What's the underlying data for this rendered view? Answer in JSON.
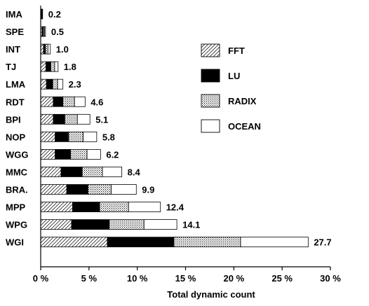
{
  "chart_data": {
    "type": "bar",
    "orientation": "horizontal",
    "stacked": true,
    "categories": [
      "IMA",
      "SPE",
      "INT",
      "TJ",
      "LMA",
      "RDT",
      "BPI",
      "NOP",
      "WGG",
      "MMC",
      "BRA.",
      "MPP",
      "WPG",
      "WGI"
    ],
    "series": [
      {
        "name": "FFT",
        "pattern": "diagonal-hatch",
        "color": "#ffffff",
        "values": [
          0.0,
          0.15,
          0.3,
          0.55,
          0.6,
          1.3,
          1.3,
          1.5,
          1.5,
          2.1,
          2.7,
          3.3,
          3.2,
          6.9
        ]
      },
      {
        "name": "LU",
        "pattern": "solid",
        "color": "#000000",
        "values": [
          0.2,
          0.15,
          0.2,
          0.5,
          0.65,
          1.0,
          1.2,
          1.4,
          1.6,
          2.2,
          2.2,
          2.8,
          3.9,
          6.9
        ]
      },
      {
        "name": "RADIX",
        "pattern": "dots",
        "color": "#ffffff",
        "values": [
          0.0,
          0.1,
          0.25,
          0.4,
          0.5,
          1.2,
          1.3,
          1.5,
          1.7,
          2.1,
          2.4,
          3.0,
          3.6,
          6.9
        ]
      },
      {
        "name": "OCEAN",
        "pattern": "none",
        "color": "#ffffff",
        "values": [
          0.0,
          0.1,
          0.25,
          0.35,
          0.55,
          1.1,
          1.3,
          1.4,
          1.4,
          2.0,
          2.6,
          3.3,
          3.4,
          7.0
        ]
      }
    ],
    "totals": [
      0.2,
      0.5,
      1.0,
      1.8,
      2.3,
      4.6,
      5.1,
      5.8,
      6.2,
      8.4,
      9.9,
      12.4,
      14.1,
      27.7
    ],
    "total_labels": [
      "0.2",
      "0.5",
      "1.0",
      "1.8",
      "2.3",
      "4.6",
      "5.1",
      "5.8",
      "6.2",
      "8.4",
      "9.9",
      "12.4",
      "14.1",
      "27.7"
    ],
    "xlabel": "Total dynamic count",
    "ylabel": "",
    "xlim": [
      0,
      30
    ],
    "xticks": [
      0,
      5,
      10,
      15,
      20,
      25,
      30
    ],
    "xtick_labels": [
      "0 %",
      "5 %",
      "10 %",
      "15 %",
      "20 %",
      "25 %",
      "30 %"
    ],
    "legend": {
      "placement": "right",
      "entries": [
        "FFT",
        "LU",
        "RADIX",
        "OCEAN"
      ]
    },
    "grid": false
  }
}
